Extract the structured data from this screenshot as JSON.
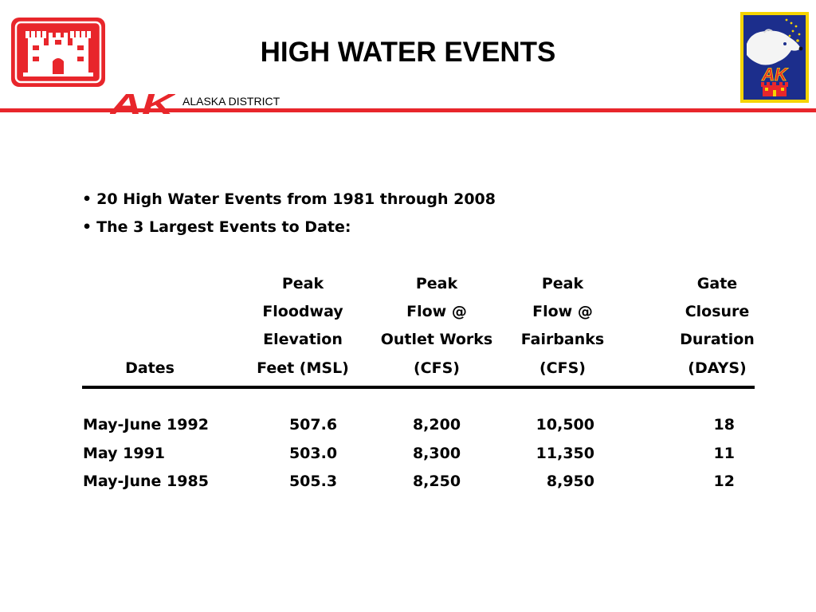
{
  "header": {
    "title": "HIGH WATER EVENTS",
    "district_label": "ALASKA DISTRICT",
    "ak_mark": "AK",
    "right_logo_mark": "AK"
  },
  "colors": {
    "brand_red": "#e8262b",
    "badge_blue": "#1c2e8c",
    "badge_gold": "#f5d400"
  },
  "bullets": [
    "20 High Water Events from 1981 through 2008",
    "The 3 Largest Events to Date:"
  ],
  "table": {
    "headers": {
      "dates": [
        "",
        "",
        "",
        "Dates"
      ],
      "elevation": [
        "Peak",
        "Floodway",
        "Elevation",
        "Feet (MSL)"
      ],
      "outlet": [
        "Peak",
        "Flow @",
        "Outlet Works",
        "(CFS)"
      ],
      "fairbanks": [
        "Peak",
        "Flow @",
        "Fairbanks",
        "(CFS)"
      ],
      "gate": [
        "Gate",
        "Closure",
        "Duration",
        "(DAYS)"
      ]
    },
    "rows": [
      {
        "dates": "May-June 1992",
        "elevation": "507.6",
        "outlet": "8,200",
        "fairbanks": "10,500",
        "gate": "18"
      },
      {
        "dates": "May 1991",
        "elevation": "503.0",
        "outlet": "8,300",
        "fairbanks": "11,350",
        "gate": "11"
      },
      {
        "dates": "May-June 1985",
        "elevation": "505.3",
        "outlet": "8,250",
        "fairbanks": "8,950",
        "gate": "12"
      }
    ]
  }
}
